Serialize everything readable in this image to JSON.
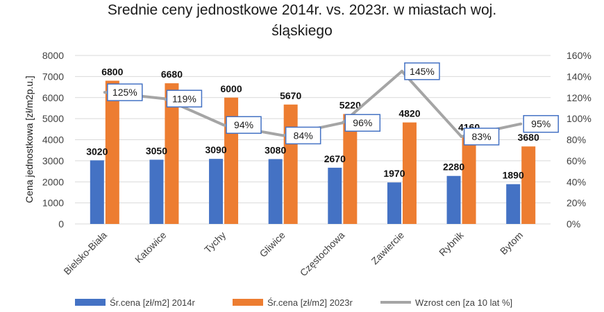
{
  "chart_data": {
    "type": "bar",
    "title_lines": [
      "Srednie ceny jednostkowe 2014r. vs. 2023r. w miastach woj.",
      "śląskiego"
    ],
    "ylabel": "Cena jednostkowa [zł/m2p.u.]",
    "xlabel": "",
    "categories": [
      "Bielsko-Biała",
      "Katowice",
      "Tychy",
      "Gliwice",
      "Częstochowa",
      "Zawiercie",
      "Rybnik",
      "Bytom"
    ],
    "series": [
      {
        "name": "Śr.cena [zł/m2] 2014r",
        "type": "bar",
        "axis": "left",
        "color": "#4472C4",
        "values": [
          3020,
          3050,
          3090,
          3080,
          2670,
          1970,
          2280,
          1890
        ],
        "labels": [
          "3020",
          "3050",
          "3090",
          "3080",
          "2670",
          "1970",
          "2280",
          "1890"
        ]
      },
      {
        "name": "Śr.cena [zł/m2] 2023r",
        "type": "bar",
        "axis": "left",
        "color": "#ED7D31",
        "values": [
          6800,
          6680,
          6000,
          5670,
          5220,
          4820,
          4160,
          3680
        ],
        "labels": [
          "6800",
          "6680",
          "6000",
          "5670",
          "5220",
          "4820",
          "4160",
          "3680"
        ]
      },
      {
        "name": "Wzrost cen [za 10 lat %]",
        "type": "line",
        "axis": "right",
        "color": "#A5A5A5",
        "values": [
          125,
          119,
          94,
          84,
          96,
          145,
          83,
          95
        ],
        "labels": [
          "125%",
          "119%",
          "94%",
          "84%",
          "96%",
          "145%",
          "83%",
          "95%"
        ]
      }
    ],
    "ylim": [
      0,
      8000
    ],
    "y_ticks": [
      "0",
      "1000",
      "2000",
      "3000",
      "4000",
      "5000",
      "6000",
      "7000",
      "8000"
    ],
    "y2lim": [
      0,
      160
    ],
    "y2_ticks": [
      "0%",
      "20%",
      "40%",
      "60%",
      "80%",
      "100%",
      "120%",
      "140%",
      "160%"
    ],
    "grid": true,
    "legend_position": "bottom"
  }
}
